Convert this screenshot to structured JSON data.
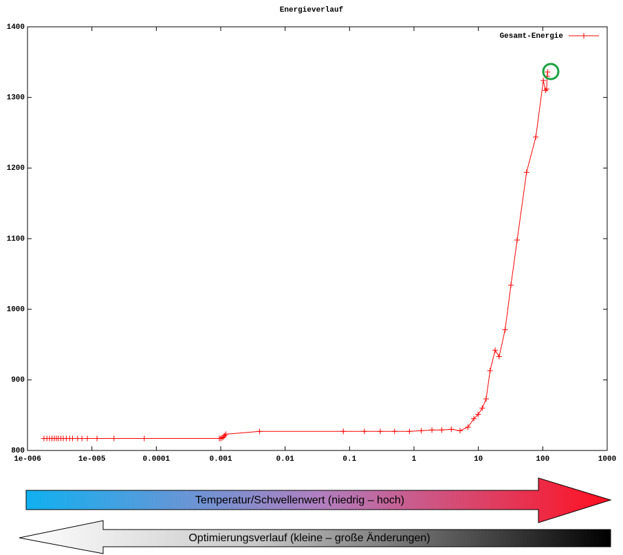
{
  "chart_data": {
    "type": "line",
    "title": "Energieverlauf",
    "x": [
      1.8e-06,
      2e-06,
      2.2e-06,
      2.4e-06,
      2.6e-06,
      2.8e-06,
      3e-06,
      3.3e-06,
      3.6e-06,
      4e-06,
      4.5e-06,
      5e-06,
      6e-06,
      7e-06,
      8.5e-06,
      1.2e-05,
      2.2e-05,
      6.5e-05,
      0.00095,
      0.001,
      0.00105,
      0.0011,
      0.00115,
      0.0012,
      0.004,
      0.08,
      0.17,
      0.3,
      0.5,
      0.85,
      1.3,
      1.9,
      2.7,
      3.8,
      5.2,
      6.9,
      8.5,
      9.9,
      11.5,
      13.2,
      15.2,
      18.2,
      21,
      26,
      32,
      40,
      56,
      78,
      102,
      110,
      115,
      117,
      119
    ],
    "series": [
      {
        "name": "Gesamt-Energie",
        "color": "#ff0000",
        "values": [
          817,
          817,
          817,
          817,
          817,
          817,
          817,
          817,
          817,
          817,
          817,
          817,
          817,
          817,
          817,
          817,
          817,
          817,
          817,
          817,
          818,
          819,
          821,
          823,
          827,
          827,
          827,
          827,
          827,
          827,
          828,
          829,
          829,
          830,
          828,
          833,
          845,
          851,
          860,
          873,
          913,
          942,
          933,
          971,
          1034,
          1098,
          1194,
          1244,
          1324,
          1310,
          1312,
          1330,
          1336
        ]
      }
    ],
    "xlim": [
      1e-06,
      1000
    ],
    "ylim": [
      800,
      1400
    ],
    "xscale": "log",
    "xticks": [
      {
        "value": 1e-06,
        "label": "1e-006"
      },
      {
        "value": 1e-05,
        "label": "1e-005"
      },
      0.0001,
      0.001,
      0.01,
      0.1,
      1,
      10,
      100,
      1000
    ],
    "yticks": [
      800,
      900,
      1000,
      1100,
      1200,
      1300,
      1400
    ],
    "legend": "upper right",
    "annotations": [
      "Temperatur/Schwellenwert (niedrig – hoch)",
      "Optimierungsverlauf (kleine – große Änderungen)"
    ]
  }
}
